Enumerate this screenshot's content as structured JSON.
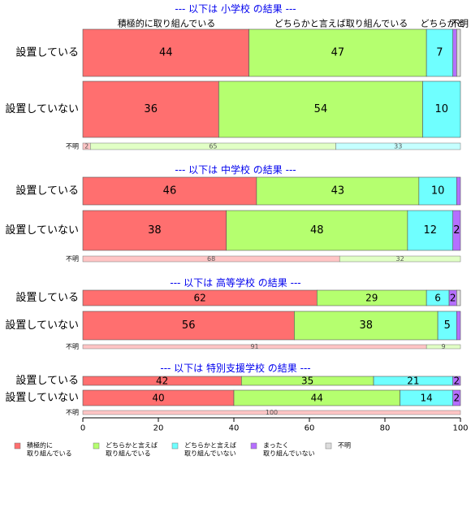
{
  "colors": {
    "positive": "#FF6F6F",
    "somewhat_positive": "#B5FF6F",
    "somewhat_negative": "#6FFFFF",
    "negative": "#B56FFF",
    "unknown": "#DDDDDD",
    "section_title": "#0000EE"
  },
  "chart_data": {
    "type": "bar",
    "orientation": "horizontal",
    "stacked": true,
    "xlim": [
      0,
      100
    ],
    "xticks": [
      "0",
      "20",
      "40",
      "60",
      "80",
      "100"
    ],
    "column_headers": [
      "積極的に取り組んでいる",
      "どちらかと言えば取り組んでいる",
      "どちらかと",
      "不明"
    ],
    "legend_position": "bottom",
    "legend": [
      {
        "label": "積極的に\n取り組んでいる",
        "color_key": "positive"
      },
      {
        "label": "どちらかと言えば\n取り組んでいる",
        "color_key": "somewhat_positive"
      },
      {
        "label": "どちらかと言えば\n取り組んでいない",
        "color_key": "somewhat_negative"
      },
      {
        "label": "まったく\n取り組んでいない",
        "color_key": "negative"
      },
      {
        "label": "不明",
        "color_key": "unknown"
      }
    ],
    "unknown_row_label": "不明",
    "groups": [
      {
        "title": "--- 以下は 小学校 の結果 ---",
        "rows": [
          {
            "label": "設置している",
            "values": [
              44,
              47,
              7,
              1,
              1
            ]
          },
          {
            "label": "設置していない",
            "values": [
              36,
              54,
              10,
              0,
              0
            ]
          }
        ],
        "unknown_row": [
          2,
          65,
          33
        ]
      },
      {
        "title": "--- 以下は 中学校 の結果 ---",
        "rows": [
          {
            "label": "設置している",
            "values": [
              46,
              43,
              10,
              1,
              0
            ]
          },
          {
            "label": "設置していない",
            "values": [
              38,
              48,
              12,
              2,
              0
            ]
          }
        ],
        "unknown_row": [
          68,
          32
        ]
      },
      {
        "title": "--- 以下は 高等学校 の結果 ---",
        "rows": [
          {
            "label": "設置している",
            "values": [
              62,
              29,
              6,
              2,
              1
            ]
          },
          {
            "label": "設置していない",
            "values": [
              56,
              38,
              5,
              1,
              0
            ]
          }
        ],
        "unknown_row": [
          91,
          9
        ]
      },
      {
        "title": "--- 以下は 特別支援学校 の結果 ---",
        "rows": [
          {
            "label": "設置している",
            "values": [
              42,
              35,
              21,
              2,
              0
            ]
          },
          {
            "label": "設置していない",
            "values": [
              40,
              44,
              14,
              2,
              0
            ]
          }
        ],
        "unknown_row": [
          100
        ]
      }
    ]
  }
}
